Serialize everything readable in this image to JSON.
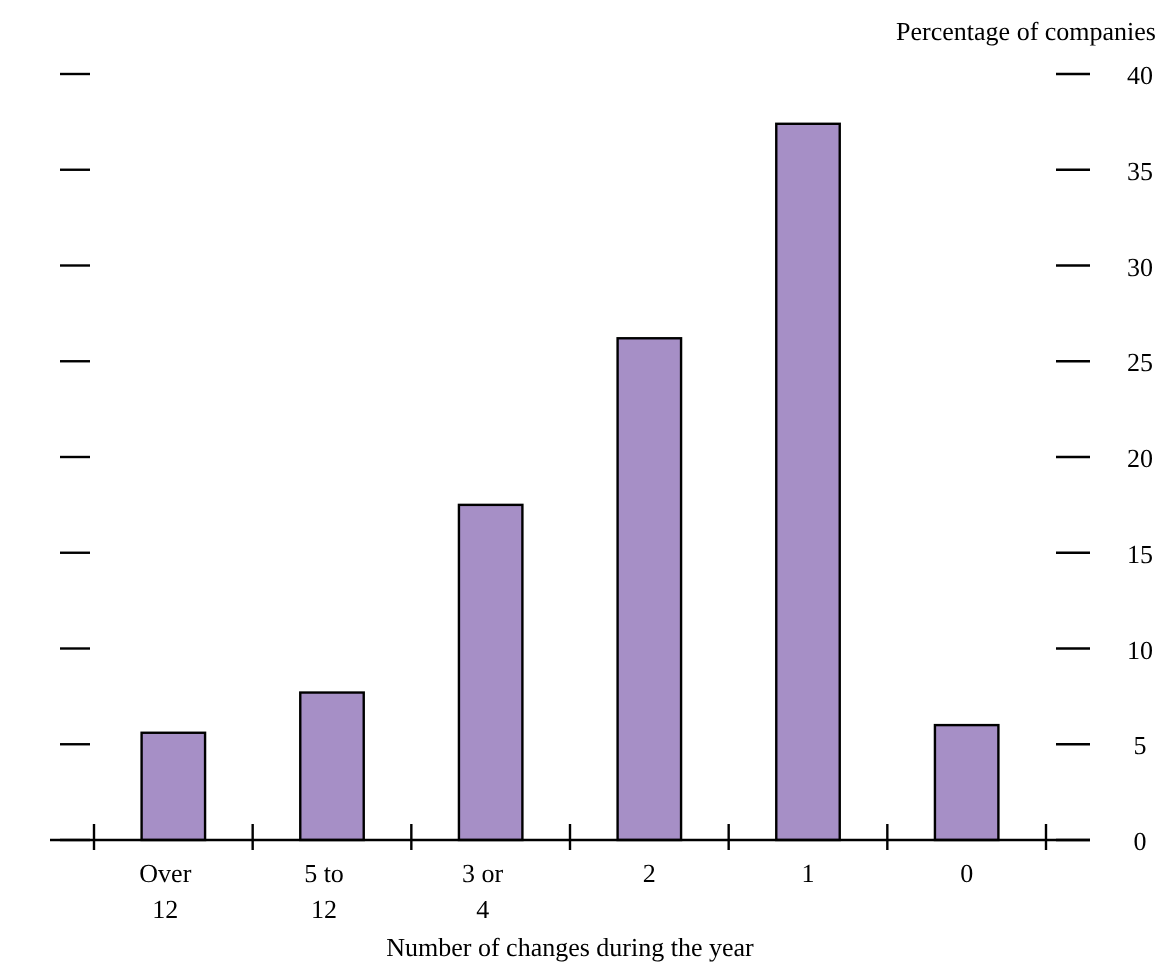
{
  "chart_data": {
    "type": "bar",
    "ylabel": "Percentage of companies",
    "xlabel": "Number of changes during the year",
    "categories": [
      "Over 12",
      "5 to 12",
      "3 or 4",
      "2",
      "1",
      "0"
    ],
    "values": [
      5.6,
      7.7,
      17.5,
      26.2,
      37.4,
      6.0
    ],
    "color": "#a68fc6",
    "ylim": [
      0,
      40
    ],
    "yticks": [
      0,
      5,
      10,
      15,
      20,
      25,
      30,
      35,
      40
    ],
    "grid": false
  }
}
